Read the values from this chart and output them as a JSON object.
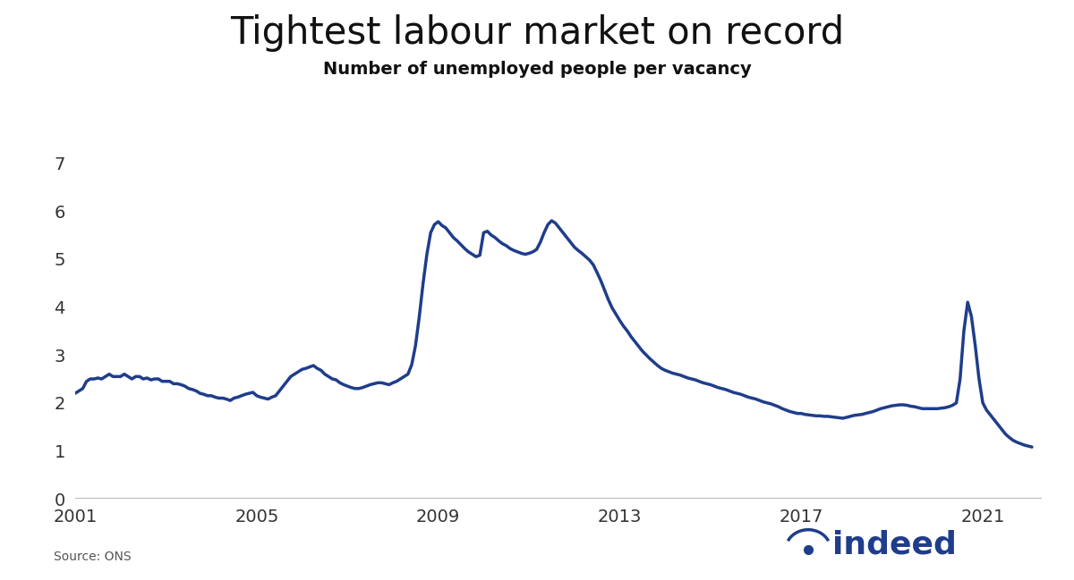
{
  "title": "Tightest labour market on record",
  "subtitle": "Number of unemployed people per vacancy",
  "source": "Source: ONS",
  "line_color": "#1F3D8B",
  "background_color": "#ffffff",
  "xlim": [
    2001.0,
    2022.3
  ],
  "ylim": [
    0,
    7.5
  ],
  "yticks": [
    0,
    1,
    2,
    3,
    4,
    5,
    6,
    7
  ],
  "xticks": [
    2001,
    2005,
    2009,
    2013,
    2017,
    2021
  ],
  "x": [
    2001.0,
    2001.083,
    2001.167,
    2001.25,
    2001.333,
    2001.417,
    2001.5,
    2001.583,
    2001.667,
    2001.75,
    2001.833,
    2001.917,
    2002.0,
    2002.083,
    2002.167,
    2002.25,
    2002.333,
    2002.417,
    2002.5,
    2002.583,
    2002.667,
    2002.75,
    2002.833,
    2002.917,
    2003.0,
    2003.083,
    2003.167,
    2003.25,
    2003.333,
    2003.417,
    2003.5,
    2003.583,
    2003.667,
    2003.75,
    2003.833,
    2003.917,
    2004.0,
    2004.083,
    2004.167,
    2004.25,
    2004.333,
    2004.417,
    2004.5,
    2004.583,
    2004.667,
    2004.75,
    2004.833,
    2004.917,
    2005.0,
    2005.083,
    2005.167,
    2005.25,
    2005.333,
    2005.417,
    2005.5,
    2005.583,
    2005.667,
    2005.75,
    2005.833,
    2005.917,
    2006.0,
    2006.083,
    2006.167,
    2006.25,
    2006.333,
    2006.417,
    2006.5,
    2006.583,
    2006.667,
    2006.75,
    2006.833,
    2006.917,
    2007.0,
    2007.083,
    2007.167,
    2007.25,
    2007.333,
    2007.417,
    2007.5,
    2007.583,
    2007.667,
    2007.75,
    2007.833,
    2007.917,
    2008.0,
    2008.083,
    2008.167,
    2008.25,
    2008.333,
    2008.417,
    2008.5,
    2008.583,
    2008.667,
    2008.75,
    2008.833,
    2008.917,
    2009.0,
    2009.083,
    2009.167,
    2009.25,
    2009.333,
    2009.417,
    2009.5,
    2009.583,
    2009.667,
    2009.75,
    2009.833,
    2009.917,
    2010.0,
    2010.083,
    2010.167,
    2010.25,
    2010.333,
    2010.417,
    2010.5,
    2010.583,
    2010.667,
    2010.75,
    2010.833,
    2010.917,
    2011.0,
    2011.083,
    2011.167,
    2011.25,
    2011.333,
    2011.417,
    2011.5,
    2011.583,
    2011.667,
    2011.75,
    2011.833,
    2011.917,
    2012.0,
    2012.083,
    2012.167,
    2012.25,
    2012.333,
    2012.417,
    2012.5,
    2012.583,
    2012.667,
    2012.75,
    2012.833,
    2012.917,
    2013.0,
    2013.083,
    2013.167,
    2013.25,
    2013.333,
    2013.417,
    2013.5,
    2013.583,
    2013.667,
    2013.75,
    2013.833,
    2013.917,
    2014.0,
    2014.083,
    2014.167,
    2014.25,
    2014.333,
    2014.417,
    2014.5,
    2014.583,
    2014.667,
    2014.75,
    2014.833,
    2014.917,
    2015.0,
    2015.083,
    2015.167,
    2015.25,
    2015.333,
    2015.417,
    2015.5,
    2015.583,
    2015.667,
    2015.75,
    2015.833,
    2015.917,
    2016.0,
    2016.083,
    2016.167,
    2016.25,
    2016.333,
    2016.417,
    2016.5,
    2016.583,
    2016.667,
    2016.75,
    2016.833,
    2016.917,
    2017.0,
    2017.083,
    2017.167,
    2017.25,
    2017.333,
    2017.417,
    2017.5,
    2017.583,
    2017.667,
    2017.75,
    2017.833,
    2017.917,
    2018.0,
    2018.083,
    2018.167,
    2018.25,
    2018.333,
    2018.417,
    2018.5,
    2018.583,
    2018.667,
    2018.75,
    2018.833,
    2018.917,
    2019.0,
    2019.083,
    2019.167,
    2019.25,
    2019.333,
    2019.417,
    2019.5,
    2019.583,
    2019.667,
    2019.75,
    2019.833,
    2019.917,
    2020.0,
    2020.083,
    2020.167,
    2020.25,
    2020.333,
    2020.417,
    2020.5,
    2020.583,
    2020.667,
    2020.75,
    2020.833,
    2020.917,
    2021.0,
    2021.083,
    2021.167,
    2021.25,
    2021.333,
    2021.417,
    2021.5,
    2021.583,
    2021.667,
    2021.75,
    2021.833,
    2021.917,
    2022.0,
    2022.083
  ],
  "y": [
    2.2,
    2.25,
    2.3,
    2.45,
    2.5,
    2.5,
    2.52,
    2.5,
    2.55,
    2.6,
    2.55,
    2.55,
    2.55,
    2.6,
    2.55,
    2.5,
    2.55,
    2.55,
    2.5,
    2.52,
    2.48,
    2.5,
    2.5,
    2.45,
    2.45,
    2.45,
    2.4,
    2.4,
    2.38,
    2.35,
    2.3,
    2.28,
    2.25,
    2.2,
    2.18,
    2.15,
    2.15,
    2.12,
    2.1,
    2.1,
    2.08,
    2.05,
    2.1,
    2.12,
    2.15,
    2.18,
    2.2,
    2.22,
    2.15,
    2.12,
    2.1,
    2.08,
    2.12,
    2.15,
    2.25,
    2.35,
    2.45,
    2.55,
    2.6,
    2.65,
    2.7,
    2.72,
    2.75,
    2.78,
    2.72,
    2.68,
    2.6,
    2.55,
    2.5,
    2.48,
    2.42,
    2.38,
    2.35,
    2.32,
    2.3,
    2.3,
    2.32,
    2.35,
    2.38,
    2.4,
    2.42,
    2.42,
    2.4,
    2.38,
    2.42,
    2.45,
    2.5,
    2.55,
    2.6,
    2.8,
    3.2,
    3.8,
    4.5,
    5.1,
    5.55,
    5.72,
    5.78,
    5.7,
    5.65,
    5.55,
    5.45,
    5.38,
    5.3,
    5.22,
    5.15,
    5.1,
    5.05,
    5.08,
    5.55,
    5.58,
    5.5,
    5.45,
    5.38,
    5.32,
    5.28,
    5.22,
    5.18,
    5.15,
    5.12,
    5.1,
    5.12,
    5.15,
    5.2,
    5.35,
    5.55,
    5.72,
    5.8,
    5.75,
    5.65,
    5.55,
    5.45,
    5.35,
    5.25,
    5.18,
    5.12,
    5.05,
    4.98,
    4.88,
    4.72,
    4.55,
    4.35,
    4.15,
    3.98,
    3.85,
    3.72,
    3.6,
    3.5,
    3.38,
    3.28,
    3.18,
    3.08,
    3.0,
    2.92,
    2.85,
    2.78,
    2.72,
    2.68,
    2.65,
    2.62,
    2.6,
    2.58,
    2.55,
    2.52,
    2.5,
    2.48,
    2.45,
    2.42,
    2.4,
    2.38,
    2.35,
    2.32,
    2.3,
    2.28,
    2.25,
    2.22,
    2.2,
    2.18,
    2.15,
    2.12,
    2.1,
    2.08,
    2.05,
    2.02,
    2.0,
    1.98,
    1.95,
    1.92,
    1.88,
    1.85,
    1.82,
    1.8,
    1.78,
    1.78,
    1.76,
    1.75,
    1.74,
    1.73,
    1.73,
    1.72,
    1.72,
    1.71,
    1.7,
    1.69,
    1.68,
    1.7,
    1.72,
    1.74,
    1.75,
    1.76,
    1.78,
    1.8,
    1.82,
    1.85,
    1.88,
    1.9,
    1.92,
    1.94,
    1.95,
    1.96,
    1.96,
    1.95,
    1.93,
    1.92,
    1.9,
    1.88,
    1.88,
    1.88,
    1.88,
    1.88,
    1.89,
    1.9,
    1.92,
    1.95,
    2.0,
    2.5,
    3.5,
    4.1,
    3.8,
    3.2,
    2.5,
    2.0,
    1.85,
    1.75,
    1.65,
    1.55,
    1.45,
    1.35,
    1.28,
    1.22,
    1.18,
    1.15,
    1.12,
    1.1,
    1.08
  ]
}
